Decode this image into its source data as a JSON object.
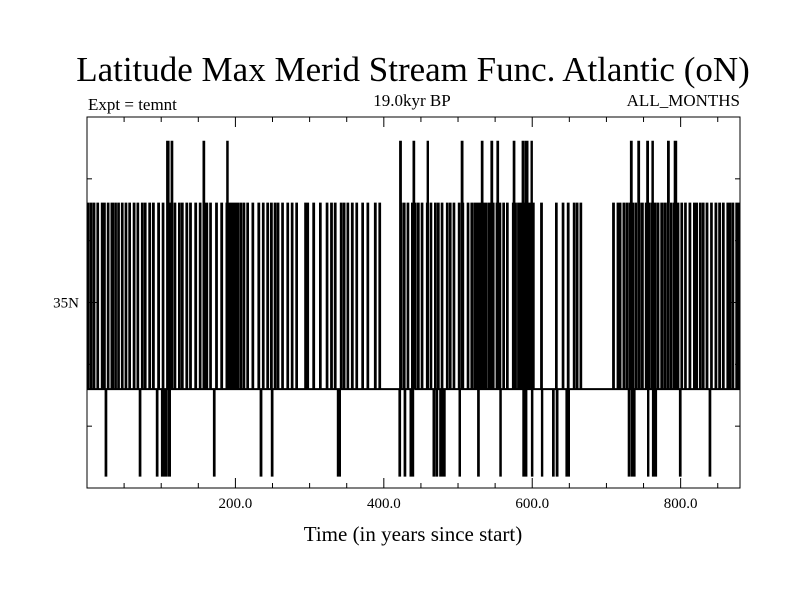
{
  "chart_data": {
    "type": "line",
    "title": "Latitude Max Merid Stream Func. Atlantic (oN)",
    "subtitle_left": "Expt = temnt",
    "subtitle_center": "19.0kyr BP",
    "subtitle_right": "ALL_MONTHS",
    "xlabel": "Time (in years since start)",
    "ylabel": "",
    "xlim": [
      0,
      880
    ],
    "xticks": [
      200,
      400,
      600,
      800
    ],
    "xtick_labels": [
      "200.0",
      "400.0",
      "600.0",
      "800.0"
    ],
    "xtick_minor_step": 50,
    "ylim": [
      20,
      50
    ],
    "yticks": [
      35
    ],
    "ytick_labels": [
      "35N"
    ],
    "ytick_minor": [
      25,
      30,
      40,
      45
    ],
    "levels": {
      "low": 21,
      "mid": 28,
      "high": 43,
      "top": 48
    },
    "series": [
      {
        "base_level": 28,
        "high_intervals": [
          [
            1,
            2
          ],
          [
            5,
            6
          ],
          [
            9,
            10
          ],
          [
            14,
            15
          ],
          [
            20,
            21
          ],
          [
            23,
            24
          ],
          [
            28,
            29
          ],
          [
            33,
            35
          ],
          [
            38,
            39
          ],
          [
            42,
            43
          ],
          [
            47,
            48
          ],
          [
            52,
            53
          ],
          [
            57,
            58
          ],
          [
            63,
            64
          ],
          [
            68,
            69
          ],
          [
            74,
            75
          ],
          [
            78,
            79
          ],
          [
            84,
            85
          ],
          [
            89,
            90
          ],
          [
            96,
            97
          ],
          [
            102,
            103
          ],
          [
            109,
            110
          ],
          [
            113,
            114
          ],
          [
            118,
            119
          ],
          [
            124,
            125
          ],
          [
            128,
            129
          ],
          [
            134,
            135
          ],
          [
            139,
            140
          ],
          [
            146,
            147
          ],
          [
            152,
            153
          ],
          [
            158,
            159
          ],
          [
            161,
            162
          ],
          [
            166,
            167
          ],
          [
            174,
            175
          ],
          [
            181,
            182
          ],
          [
            188,
            189
          ],
          [
            191,
            192
          ],
          [
            193,
            194
          ],
          [
            196,
            197
          ],
          [
            198,
            199
          ],
          [
            201,
            202
          ],
          [
            203,
            204
          ],
          [
            207,
            208
          ],
          [
            211,
            212
          ],
          [
            216,
            217
          ],
          [
            223,
            224
          ],
          [
            231,
            232
          ],
          [
            237,
            238
          ],
          [
            243,
            244
          ],
          [
            248,
            249
          ],
          [
            253,
            254
          ],
          [
            257,
            258
          ],
          [
            263,
            264
          ],
          [
            270,
            271
          ],
          [
            276,
            277
          ],
          [
            282,
            283
          ],
          [
            294,
            295
          ],
          [
            297,
            298
          ],
          [
            305,
            306
          ],
          [
            314,
            315
          ],
          [
            323,
            324
          ],
          [
            329,
            330
          ],
          [
            334,
            335
          ],
          [
            342,
            343
          ],
          [
            346,
            347
          ],
          [
            351,
            352
          ],
          [
            357,
            358
          ],
          [
            363,
            364
          ],
          [
            371,
            372
          ],
          [
            378,
            379
          ],
          [
            388,
            389
          ],
          [
            394,
            395
          ],
          [
            423,
            424
          ],
          [
            427,
            428
          ],
          [
            432,
            433
          ],
          [
            438,
            439
          ],
          [
            441,
            443
          ],
          [
            446,
            447
          ],
          [
            451,
            452
          ],
          [
            458,
            459
          ],
          [
            463,
            464
          ],
          [
            469,
            470
          ],
          [
            473,
            474
          ],
          [
            478,
            479
          ],
          [
            485,
            486
          ],
          [
            489,
            490
          ],
          [
            494,
            495
          ],
          [
            501,
            502
          ],
          [
            506,
            507
          ],
          [
            513,
            514
          ],
          [
            518,
            519
          ],
          [
            522,
            523
          ],
          [
            525,
            526
          ],
          [
            528,
            529
          ],
          [
            531,
            532
          ],
          [
            534,
            535
          ],
          [
            537,
            538
          ],
          [
            541,
            542
          ],
          [
            544,
            545
          ],
          [
            547,
            548
          ],
          [
            552,
            553
          ],
          [
            556,
            557
          ],
          [
            561,
            562
          ],
          [
            566,
            567
          ],
          [
            574,
            575
          ],
          [
            577,
            578
          ],
          [
            581,
            582
          ],
          [
            583,
            584
          ],
          [
            586,
            587
          ],
          [
            588,
            589
          ],
          [
            590,
            591
          ],
          [
            592,
            593
          ],
          [
            594,
            595
          ],
          [
            596,
            597
          ],
          [
            598,
            599
          ],
          [
            601,
            602
          ],
          [
            612,
            613
          ],
          [
            632,
            633
          ],
          [
            641,
            642
          ],
          [
            648,
            649
          ],
          [
            656,
            657
          ],
          [
            660,
            661
          ],
          [
            665,
            666
          ],
          [
            709,
            710
          ],
          [
            715,
            716
          ],
          [
            718,
            719
          ],
          [
            723,
            724
          ],
          [
            727,
            728
          ],
          [
            731,
            732
          ],
          [
            735,
            736
          ],
          [
            739,
            740
          ],
          [
            744,
            745
          ],
          [
            748,
            749
          ],
          [
            753,
            754
          ],
          [
            757,
            758
          ],
          [
            761,
            762
          ],
          [
            765,
            766
          ],
          [
            769,
            770
          ],
          [
            774,
            775
          ],
          [
            778,
            779
          ],
          [
            782,
            783
          ],
          [
            787,
            788
          ],
          [
            791,
            792
          ],
          [
            796,
            797
          ],
          [
            801,
            802
          ],
          [
            806,
            807
          ],
          [
            812,
            813
          ],
          [
            818,
            819
          ],
          [
            821,
            822
          ],
          [
            826,
            827
          ],
          [
            830,
            831
          ],
          [
            835,
            836
          ],
          [
            841,
            842
          ],
          [
            847,
            848
          ],
          [
            852,
            853
          ],
          [
            857,
            858
          ],
          [
            863,
            864
          ],
          [
            866,
            867
          ],
          [
            870,
            871
          ],
          [
            875,
            876
          ],
          [
            878,
            879
          ]
        ],
        "top_intervals": [
          [
            108,
            110
          ],
          [
            114,
            115
          ],
          [
            157,
            158
          ],
          [
            188,
            189
          ],
          [
            422,
            423
          ],
          [
            440,
            441
          ],
          [
            458,
            459
          ],
          [
            505,
            506
          ],
          [
            532,
            533
          ],
          [
            545,
            546
          ],
          [
            553,
            554
          ],
          [
            575,
            576
          ],
          [
            587,
            588
          ],
          [
            590,
            591
          ],
          [
            592,
            593
          ],
          [
            598,
            599
          ],
          [
            733,
            734
          ],
          [
            743,
            744
          ],
          [
            755,
            756
          ],
          [
            761,
            762
          ],
          [
            783,
            784
          ],
          [
            791,
            792
          ],
          [
            793,
            794
          ]
        ],
        "low_intervals": [
          [
            25,
            26
          ],
          [
            71,
            72
          ],
          [
            94,
            95
          ],
          [
            101,
            102
          ],
          [
            103,
            104
          ],
          [
            104,
            105
          ],
          [
            106,
            107
          ],
          [
            108,
            109
          ],
          [
            110,
            111
          ],
          [
            171,
            172
          ],
          [
            234,
            235
          ],
          [
            249,
            250
          ],
          [
            338,
            339
          ],
          [
            340,
            341
          ],
          [
            421,
            422
          ],
          [
            428,
            429
          ],
          [
            436,
            437
          ],
          [
            438,
            439
          ],
          [
            467,
            468
          ],
          [
            471,
            472
          ],
          [
            476,
            477
          ],
          [
            479,
            480
          ],
          [
            481,
            482
          ],
          [
            501,
            502
          ],
          [
            527,
            528
          ],
          [
            556,
            557
          ],
          [
            587,
            588
          ],
          [
            588,
            589
          ],
          [
            590,
            591
          ],
          [
            598,
            599
          ],
          [
            612,
            613
          ],
          [
            628,
            629
          ],
          [
            633,
            634
          ],
          [
            646,
            647
          ],
          [
            648,
            649
          ],
          [
            730,
            731
          ],
          [
            733,
            734
          ],
          [
            735,
            736
          ],
          [
            737,
            738
          ],
          [
            755,
            756
          ],
          [
            761,
            762
          ],
          [
            763,
            764
          ],
          [
            766,
            767
          ],
          [
            799,
            800
          ],
          [
            839,
            840
          ]
        ]
      }
    ],
    "grid": false,
    "legend": "none"
  }
}
